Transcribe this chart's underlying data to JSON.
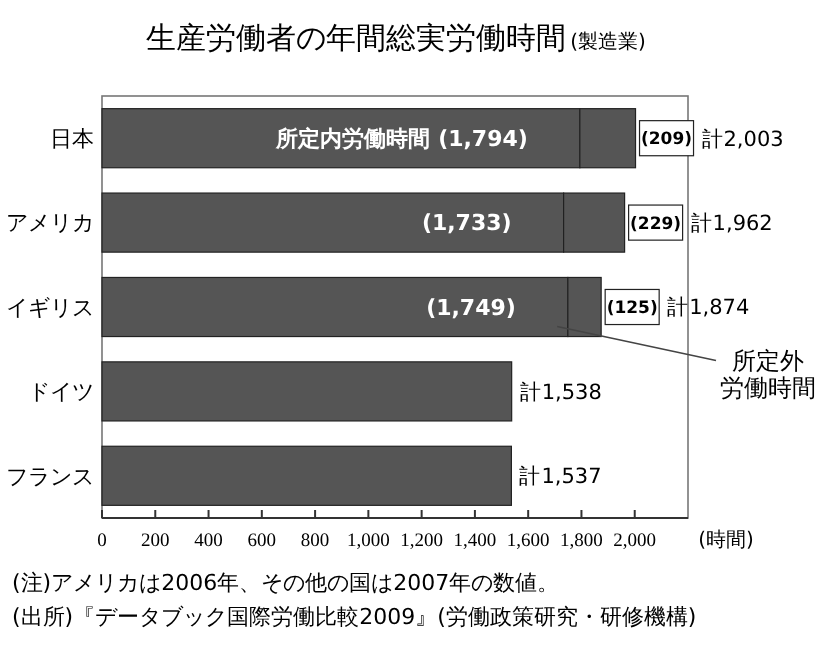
{
  "chart_data": {
    "type": "bar",
    "orientation": "horizontal",
    "stacked": true,
    "title": "生産労働者の年間総実労働時間",
    "subtitle": "(製造業)",
    "xlabel": "(時間)",
    "categories": [
      "日本",
      "アメリカ",
      "イギリス",
      "ドイツ",
      "フランス"
    ],
    "series": [
      {
        "name": "所定内労働時間",
        "color": "#555555",
        "values": [
          1794,
          1733,
          1749,
          1538,
          1537
        ],
        "value_labels": [
          "(1,794)",
          "(1,733)",
          "(1,749)",
          null,
          null
        ]
      },
      {
        "name": "所定外労働時間",
        "color": "#555555",
        "values": [
          209,
          229,
          125,
          null,
          null
        ],
        "value_labels": [
          "(209)",
          "(229)",
          "(125)",
          null,
          null
        ]
      }
    ],
    "totals": [
      "計2,003",
      "計1,962",
      "計1,874",
      "計1,538",
      "計1,537"
    ],
    "xlim": [
      0,
      2200
    ],
    "xticks": [
      0,
      200,
      400,
      600,
      800,
      {
        "value": 1000,
        "label": "1,000"
      },
      {
        "value": 1200,
        "label": "1,200"
      },
      {
        "value": 1400,
        "label": "1,400"
      },
      {
        "value": 1600,
        "label": "1,600"
      },
      {
        "value": 1800,
        "label": "1,800"
      },
      {
        "value": 2000,
        "label": "2,000"
      }
    ],
    "grid": false,
    "legend": "right",
    "annotations": [
      "(注)アメリカは2006年、その他の国は2007年の数値。",
      "(出所)『データブック国際労働比較2009』(労働政策研究・研修機構)"
    ]
  }
}
